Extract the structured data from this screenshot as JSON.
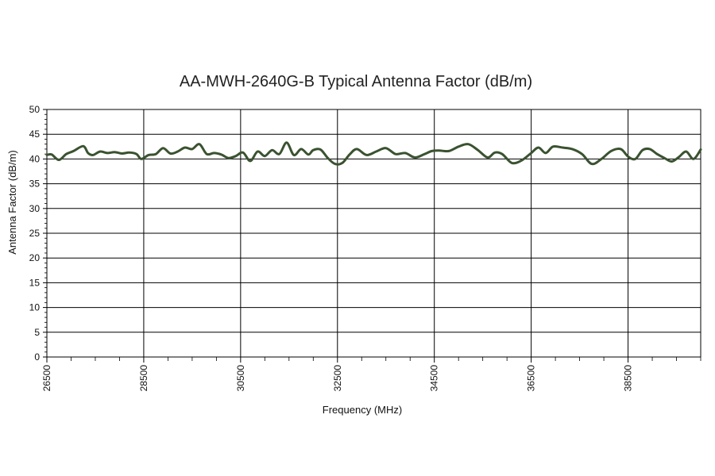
{
  "chart_data": {
    "type": "line",
    "title": "AA-MWH-2640G-B Typical Antenna Factor (dB/m)",
    "xlabel": "Frequency (MHz)",
    "ylabel": "Antenna Factor (dB/m)",
    "xlim": [
      26500,
      40000
    ],
    "ylim": [
      0,
      50
    ],
    "x_ticks": [
      26500,
      28500,
      30500,
      32500,
      34500,
      36500,
      38500
    ],
    "x_tick_labels": [
      "26500",
      "28500",
      "30500",
      "32500",
      "34500",
      "36500",
      "38500"
    ],
    "y_ticks": [
      0,
      5,
      10,
      15,
      20,
      25,
      30,
      35,
      40,
      45,
      50
    ],
    "y_tick_labels": [
      "0",
      "5",
      "10",
      "15",
      "20",
      "25",
      "30",
      "35",
      "40",
      "45",
      "50"
    ],
    "grid": true,
    "line_color": "#3a5230",
    "series": [
      {
        "x": [
          26500,
          26600,
          26750,
          26900,
          27050,
          27250,
          27350,
          27450,
          27600,
          27750,
          27900,
          28050,
          28200,
          28350,
          28450,
          28600,
          28750,
          28900,
          29050,
          29200,
          29350,
          29500,
          29650,
          29800,
          29950,
          30100,
          30250,
          30400,
          30550,
          30700,
          30850,
          31000,
          31150,
          31300,
          31450,
          31600,
          31750,
          31900,
          32000,
          32150,
          32300,
          32450,
          32600,
          32750,
          32900,
          33100,
          33300,
          33500,
          33700,
          33900,
          34100,
          34300,
          34450,
          34600,
          34800,
          35000,
          35200,
          35400,
          35600,
          35750,
          35900,
          36100,
          36300,
          36500,
          36650,
          36800,
          36950,
          37150,
          37350,
          37550,
          37750,
          37950,
          38150,
          38350,
          38500,
          38650,
          38800,
          38950,
          39100,
          39250,
          39400,
          39550,
          39700,
          39850,
          40000
        ],
        "y": [
          40.8,
          40.9,
          39.8,
          41.0,
          41.6,
          42.6,
          41.2,
          40.8,
          41.5,
          41.2,
          41.4,
          41.1,
          41.3,
          41.0,
          40.0,
          40.8,
          41.0,
          42.2,
          41.1,
          41.5,
          42.3,
          42.0,
          43.0,
          41.0,
          41.2,
          40.9,
          40.2,
          40.6,
          41.3,
          39.6,
          41.5,
          40.6,
          41.8,
          41.0,
          43.3,
          40.8,
          42.0,
          40.9,
          41.8,
          41.9,
          40.2,
          39.0,
          39.2,
          40.9,
          42.0,
          40.8,
          41.5,
          42.2,
          41.0,
          41.2,
          40.3,
          41.0,
          41.6,
          41.7,
          41.6,
          42.5,
          43.0,
          41.8,
          40.3,
          41.3,
          41.0,
          39.2,
          39.7,
          41.2,
          42.3,
          41.2,
          42.5,
          42.3,
          42.0,
          41.0,
          39.0,
          40.0,
          41.6,
          42.0,
          40.5,
          40.0,
          41.8,
          42.0,
          41.0,
          40.2,
          39.5,
          40.4,
          41.5,
          40.0,
          41.9
        ]
      }
    ]
  }
}
